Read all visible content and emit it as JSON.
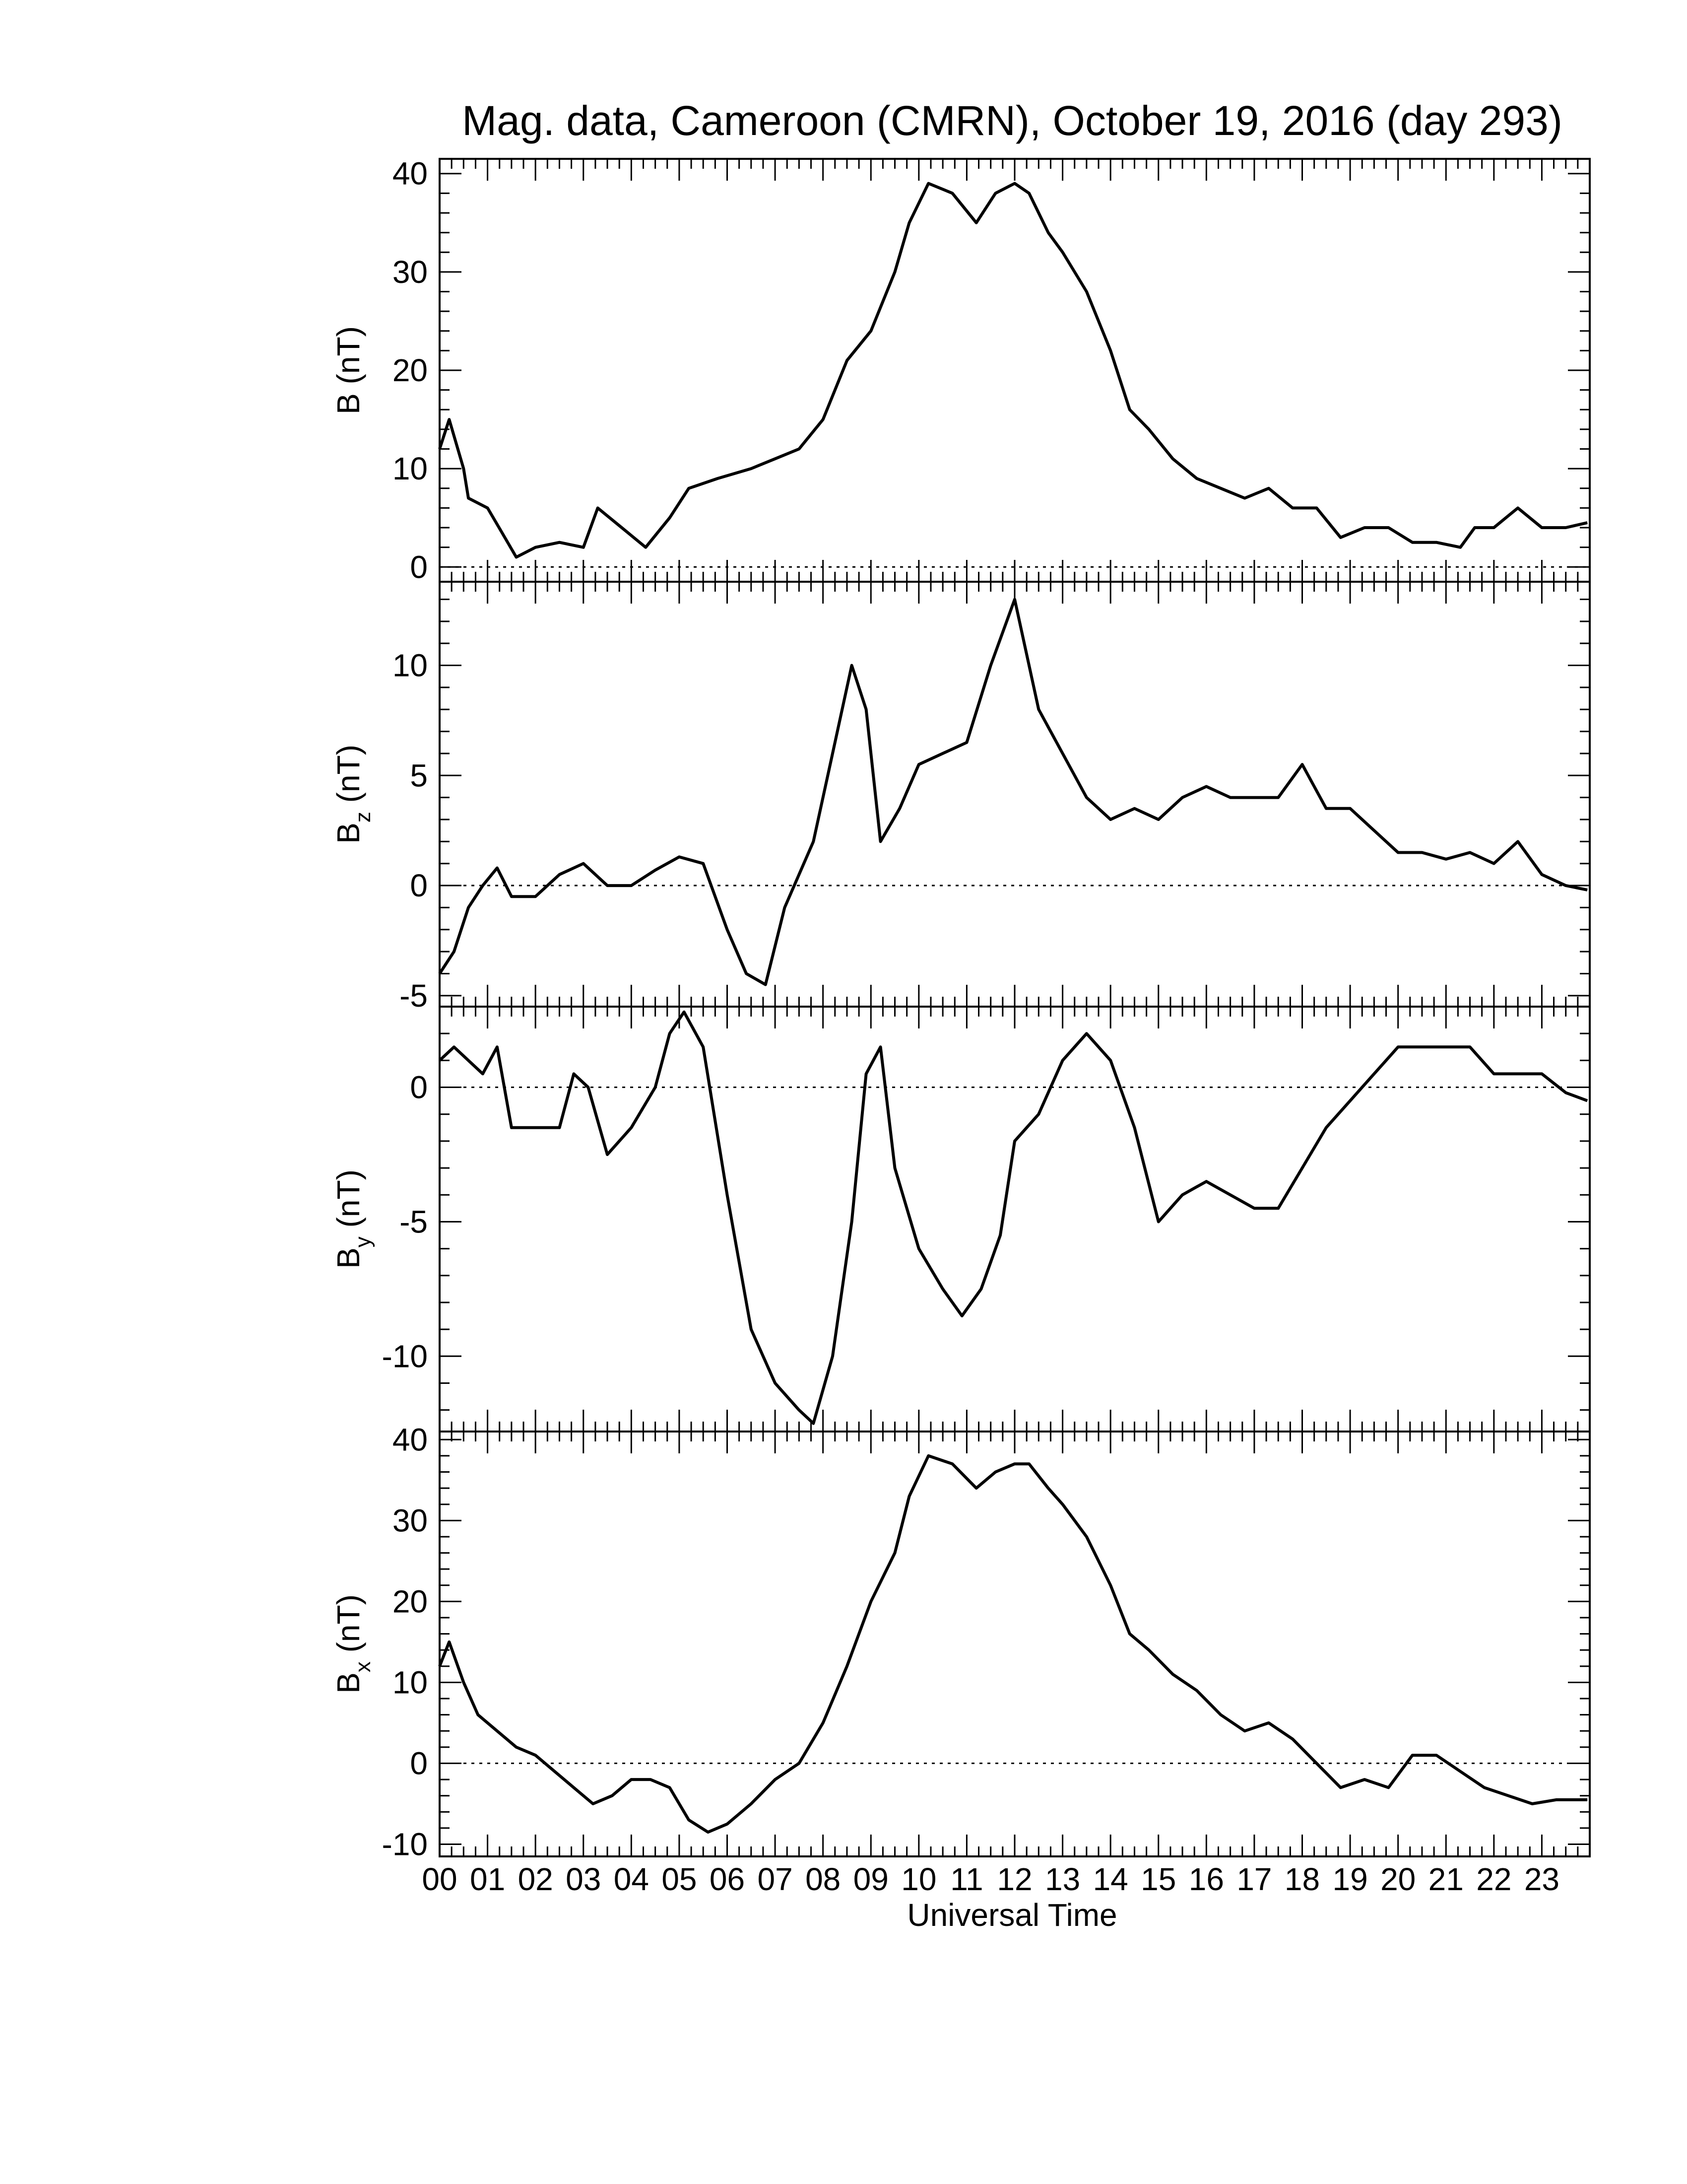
{
  "title": "Mag. data, Cameroon (CMRN), October 19, 2016 (day 293)",
  "xlabel": "Universal Time",
  "x_tick_labels": [
    "00",
    "01",
    "02",
    "03",
    "04",
    "05",
    "06",
    "07",
    "08",
    "09",
    "10",
    "11",
    "12",
    "13",
    "14",
    "15",
    "16",
    "17",
    "18",
    "19",
    "20",
    "21",
    "22",
    "23"
  ],
  "chart_data": [
    {
      "type": "line",
      "panel": "B",
      "ylabel": "B (nT)",
      "ylabel_main": "B",
      "ylabel_sub": "",
      "ylabel_unit": "(nT)",
      "xlim": [
        0,
        24
      ],
      "ylim": [
        -1.5,
        41.5
      ],
      "yticks": [
        0,
        10,
        20,
        30,
        40
      ],
      "zero_line": true,
      "x": [
        0,
        0.2,
        0.5,
        0.6,
        1.0,
        1.3,
        1.6,
        2.0,
        2.5,
        3.0,
        3.3,
        3.8,
        4.3,
        4.8,
        5.2,
        5.8,
        6.5,
        7.0,
        7.5,
        8.0,
        8.5,
        9.0,
        9.5,
        9.8,
        10.2,
        10.7,
        11.2,
        11.6,
        12.0,
        12.3,
        12.7,
        13.0,
        13.5,
        14.0,
        14.4,
        14.8,
        15.3,
        15.8,
        16.3,
        16.8,
        17.3,
        17.8,
        18.3,
        18.8,
        19.3,
        19.8,
        20.3,
        20.8,
        21.3,
        21.6,
        22.0,
        22.5,
        23.0,
        23.5,
        23.95
      ],
      "y": [
        12,
        15,
        10,
        7,
        6,
        3.5,
        1,
        2,
        2.5,
        2,
        6,
        4,
        2,
        5,
        8,
        9,
        10,
        11,
        12,
        15,
        21,
        24,
        30,
        35,
        39,
        38,
        35,
        38,
        39,
        38,
        34,
        32,
        28,
        22,
        16,
        14,
        11,
        9,
        8,
        7,
        8,
        6,
        6,
        3,
        4,
        4,
        2.5,
        2.5,
        2,
        4,
        4,
        6,
        4,
        4,
        4.5
      ]
    },
    {
      "type": "line",
      "panel": "Bz",
      "ylabel": "Bz (nT)",
      "ylabel_main": "B",
      "ylabel_sub": "z",
      "ylabel_unit": "(nT)",
      "xlim": [
        0,
        24
      ],
      "ylim": [
        -5.5,
        13.8
      ],
      "yticks": [
        -5,
        0,
        5,
        10
      ],
      "zero_line": true,
      "x": [
        0,
        0.3,
        0.6,
        0.9,
        1.2,
        1.5,
        2.0,
        2.5,
        3.0,
        3.5,
        4.0,
        4.5,
        5.0,
        5.5,
        6.0,
        6.4,
        6.8,
        7.2,
        7.8,
        8.2,
        8.6,
        8.9,
        9.2,
        9.6,
        10.0,
        10.5,
        11.0,
        11.5,
        12.0,
        12.5,
        13.0,
        13.5,
        14.0,
        14.5,
        15.0,
        15.5,
        16.0,
        16.5,
        17.0,
        17.5,
        18.0,
        18.5,
        19.0,
        19.5,
        20.0,
        20.5,
        21.0,
        21.5,
        22.0,
        22.5,
        23.0,
        23.5,
        23.95
      ],
      "y": [
        -4,
        -3,
        -1,
        0,
        0.8,
        -0.5,
        -0.5,
        0.5,
        1,
        0,
        0,
        0.7,
        1.3,
        1,
        -2,
        -4,
        -4.5,
        -1,
        2,
        6,
        10,
        8,
        2,
        3.5,
        5.5,
        6,
        6.5,
        10,
        13,
        8,
        6,
        4,
        3,
        3.5,
        3,
        4,
        4.5,
        4,
        4,
        4,
        5.5,
        3.5,
        3.5,
        2.5,
        1.5,
        1.5,
        1.2,
        1.5,
        1,
        2,
        0.5,
        0,
        -0.2
      ]
    },
    {
      "type": "line",
      "panel": "By",
      "ylabel": "By (nT)",
      "ylabel_main": "B",
      "ylabel_sub": "y",
      "ylabel_unit": "(nT)",
      "xlim": [
        0,
        24
      ],
      "ylim": [
        -12.8,
        3.0
      ],
      "yticks": [
        -10,
        -5,
        0
      ],
      "zero_line": true,
      "x": [
        0,
        0.3,
        0.6,
        0.9,
        1.2,
        1.5,
        2.0,
        2.5,
        2.8,
        3.1,
        3.5,
        4.0,
        4.5,
        4.8,
        5.1,
        5.5,
        6.0,
        6.5,
        7.0,
        7.5,
        7.8,
        8.2,
        8.6,
        8.9,
        9.2,
        9.5,
        10.0,
        10.5,
        10.9,
        11.3,
        11.7,
        12.0,
        12.5,
        13.0,
        13.5,
        14.0,
        14.5,
        15.0,
        15.5,
        16.0,
        16.5,
        17.0,
        17.5,
        18.0,
        18.5,
        19.0,
        19.5,
        20.0,
        20.5,
        21.0,
        21.5,
        22.0,
        22.5,
        23.0,
        23.5,
        23.95
      ],
      "y": [
        1,
        1.5,
        1,
        0.5,
        1.5,
        -1.5,
        -1.5,
        -1.5,
        0.5,
        0,
        -2.5,
        -1.5,
        0,
        2,
        2.8,
        1.5,
        -4,
        -9,
        -11,
        -12,
        -12.5,
        -10,
        -5,
        0.5,
        1.5,
        -3,
        -6,
        -7.5,
        -8.5,
        -7.5,
        -5.5,
        -2,
        -1,
        1,
        2,
        1,
        -1.5,
        -5,
        -4,
        -3.5,
        -4,
        -4.5,
        -4.5,
        -3,
        -1.5,
        -0.5,
        0.5,
        1.5,
        1.5,
        1.5,
        1.5,
        0.5,
        0.5,
        0.5,
        -0.2,
        -0.5
      ]
    },
    {
      "type": "line",
      "panel": "Bx",
      "ylabel": "Bx (nT)",
      "ylabel_main": "B",
      "ylabel_sub": "x",
      "ylabel_unit": "(nT)",
      "xlim": [
        0,
        24
      ],
      "ylim": [
        -11.5,
        41.0
      ],
      "yticks": [
        -10,
        0,
        10,
        20,
        30,
        40
      ],
      "zero_line": true,
      "x": [
        0,
        0.2,
        0.5,
        0.8,
        1.2,
        1.6,
        2.0,
        2.4,
        2.8,
        3.2,
        3.6,
        4.0,
        4.4,
        4.8,
        5.2,
        5.6,
        6.0,
        6.5,
        7.0,
        7.5,
        8.0,
        8.5,
        9.0,
        9.5,
        9.8,
        10.2,
        10.7,
        11.2,
        11.6,
        12.0,
        12.3,
        12.7,
        13.0,
        13.5,
        14.0,
        14.4,
        14.8,
        15.3,
        15.8,
        16.3,
        16.8,
        17.3,
        17.8,
        18.3,
        18.8,
        19.3,
        19.8,
        20.3,
        20.8,
        21.3,
        21.8,
        22.3,
        22.8,
        23.3,
        23.95
      ],
      "y": [
        12,
        15,
        10,
        6,
        4,
        2,
        1,
        -1,
        -3,
        -5,
        -4,
        -2,
        -2,
        -3,
        -7,
        -8.5,
        -7.5,
        -5,
        -2,
        0,
        5,
        12,
        20,
        26,
        33,
        38,
        37,
        34,
        36,
        37,
        37,
        34,
        32,
        28,
        22,
        16,
        14,
        11,
        9,
        6,
        4,
        5,
        3,
        0,
        -3,
        -2,
        -3,
        1,
        1,
        -1,
        -3,
        -4,
        -5,
        -4.5,
        -4.5
      ]
    }
  ]
}
